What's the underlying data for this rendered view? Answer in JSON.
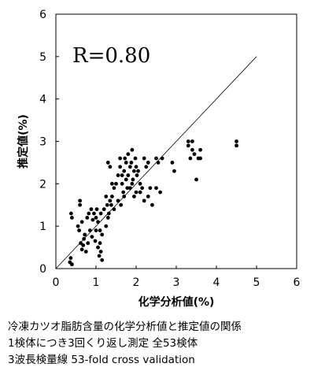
{
  "chart_data": {
    "type": "scatter",
    "xlabel": "化学分析値(%)",
    "ylabel": "推定値(%)",
    "xlim": [
      0,
      6
    ],
    "ylim": [
      0,
      6
    ],
    "xticks": [
      0,
      1,
      2,
      3,
      4,
      5,
      6
    ],
    "yticks": [
      0,
      1,
      2,
      3,
      4,
      5,
      6
    ],
    "annotation": "R=0.80",
    "reference_line": {
      "from": [
        0,
        0
      ],
      "to": [
        5,
        5
      ]
    },
    "grid": false,
    "legend": "none",
    "point_color": "#000000",
    "series": [
      {
        "x": [
          0.35,
          0.37,
          0.38,
          0.4,
          0.4,
          0.55,
          0.58,
          0.6,
          0.6,
          0.62,
          0.65,
          0.65,
          0.68,
          0.7,
          0.72,
          0.75,
          0.78,
          0.8,
          0.82,
          0.85,
          0.88,
          0.9,
          0.92,
          0.95,
          0.98,
          1.0,
          1.0,
          1.02,
          1.05,
          1.05,
          1.08,
          1.1,
          1.1,
          1.12,
          1.12,
          1.15,
          1.15,
          1.2,
          1.25,
          1.25,
          1.28,
          1.3,
          1.3,
          1.32,
          1.35,
          1.35,
          1.38,
          1.4,
          1.4,
          1.45,
          1.45,
          1.5,
          1.55,
          1.55,
          1.6,
          1.6,
          1.62,
          1.65,
          1.65,
          1.68,
          1.7,
          1.7,
          1.72,
          1.75,
          1.75,
          1.78,
          1.8,
          1.8,
          1.85,
          1.85,
          1.88,
          1.9,
          1.9,
          1.92,
          1.95,
          1.95,
          1.98,
          2.0,
          2.0,
          2.02,
          2.05,
          2.1,
          2.1,
          2.15,
          2.2,
          2.2,
          2.25,
          2.3,
          2.3,
          2.35,
          2.4,
          2.5,
          2.5,
          2.55,
          2.6,
          2.65,
          2.9,
          2.95,
          3.3,
          3.3,
          3.35,
          3.4,
          3.4,
          3.45,
          3.5,
          3.55,
          3.6,
          3.6,
          4.5,
          4.5
        ],
        "y": [
          0.15,
          0.25,
          1.3,
          1.2,
          0.1,
          1.0,
          0.9,
          1.6,
          1.5,
          0.6,
          0.45,
          1.1,
          0.55,
          0.7,
          0.8,
          0.4,
          1.2,
          0.6,
          1.3,
          0.9,
          1.4,
          0.75,
          1.15,
          1.3,
          0.65,
          1.2,
          0.9,
          1.4,
          1.1,
          0.5,
          0.3,
          0.9,
          0.6,
          1.3,
          0.4,
          0.8,
          0.2,
          1.4,
          1.7,
          1.0,
          1.5,
          2.5,
          1.2,
          1.3,
          2.4,
          1.6,
          1.5,
          1.7,
          2.0,
          1.4,
          1.9,
          2.0,
          2.2,
          1.6,
          2.4,
          2.6,
          1.5,
          2.2,
          2.0,
          1.8,
          1.7,
          2.3,
          2.6,
          2.1,
          2.5,
          1.9,
          2.7,
          2.2,
          2.4,
          1.9,
          2.5,
          2.8,
          2.0,
          2.1,
          1.7,
          2.3,
          2.6,
          1.8,
          2.4,
          2.2,
          2.3,
          1.8,
          2.0,
          1.9,
          2.6,
          1.6,
          2.4,
          1.7,
          2.5,
          1.9,
          1.5,
          2.6,
          1.9,
          2.5,
          1.8,
          2.6,
          2.5,
          2.3,
          3.0,
          2.9,
          2.6,
          3.0,
          2.8,
          2.7,
          2.1,
          2.6,
          2.8,
          2.6,
          3.0,
          2.9
        ]
      }
    ]
  },
  "caption": {
    "line1": "冷凍カツオ脂肪含量の化学分析値と推定値の関係",
    "line2": "1検体につき3回くり返し測定  全53検体",
    "line3": "3波長検量線  53-fold cross validation"
  }
}
